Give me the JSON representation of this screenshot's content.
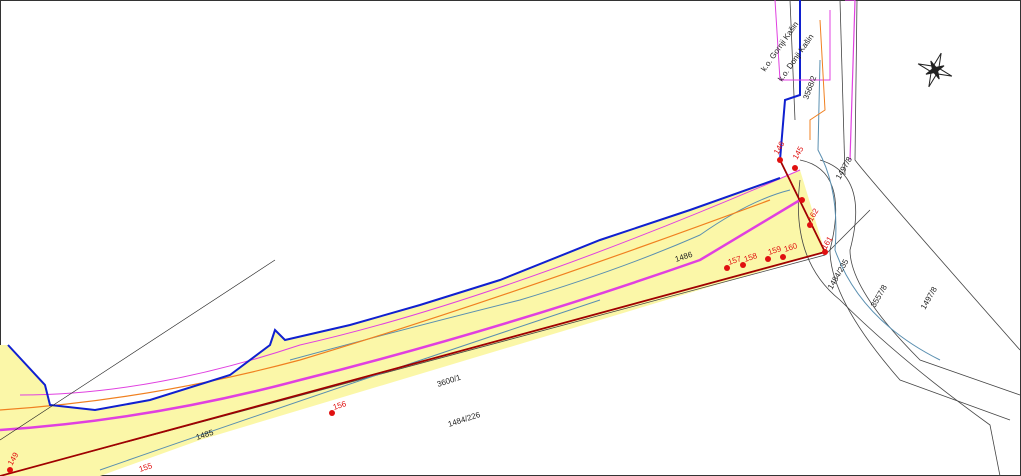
{
  "map": {
    "cadastral_areas": [
      "k.o. Gornji Kašin",
      "k.o. Donji Kašin"
    ],
    "parcels": [
      "3568/2",
      "1497/8",
      "1486",
      "1485",
      "3600/1",
      "1484/226",
      "1484/235",
      "3557/8",
      "1497/8"
    ],
    "points": [
      "146",
      "145",
      "162",
      "161",
      "157",
      "158",
      "159",
      "160",
      "156",
      "155",
      "149"
    ]
  }
}
